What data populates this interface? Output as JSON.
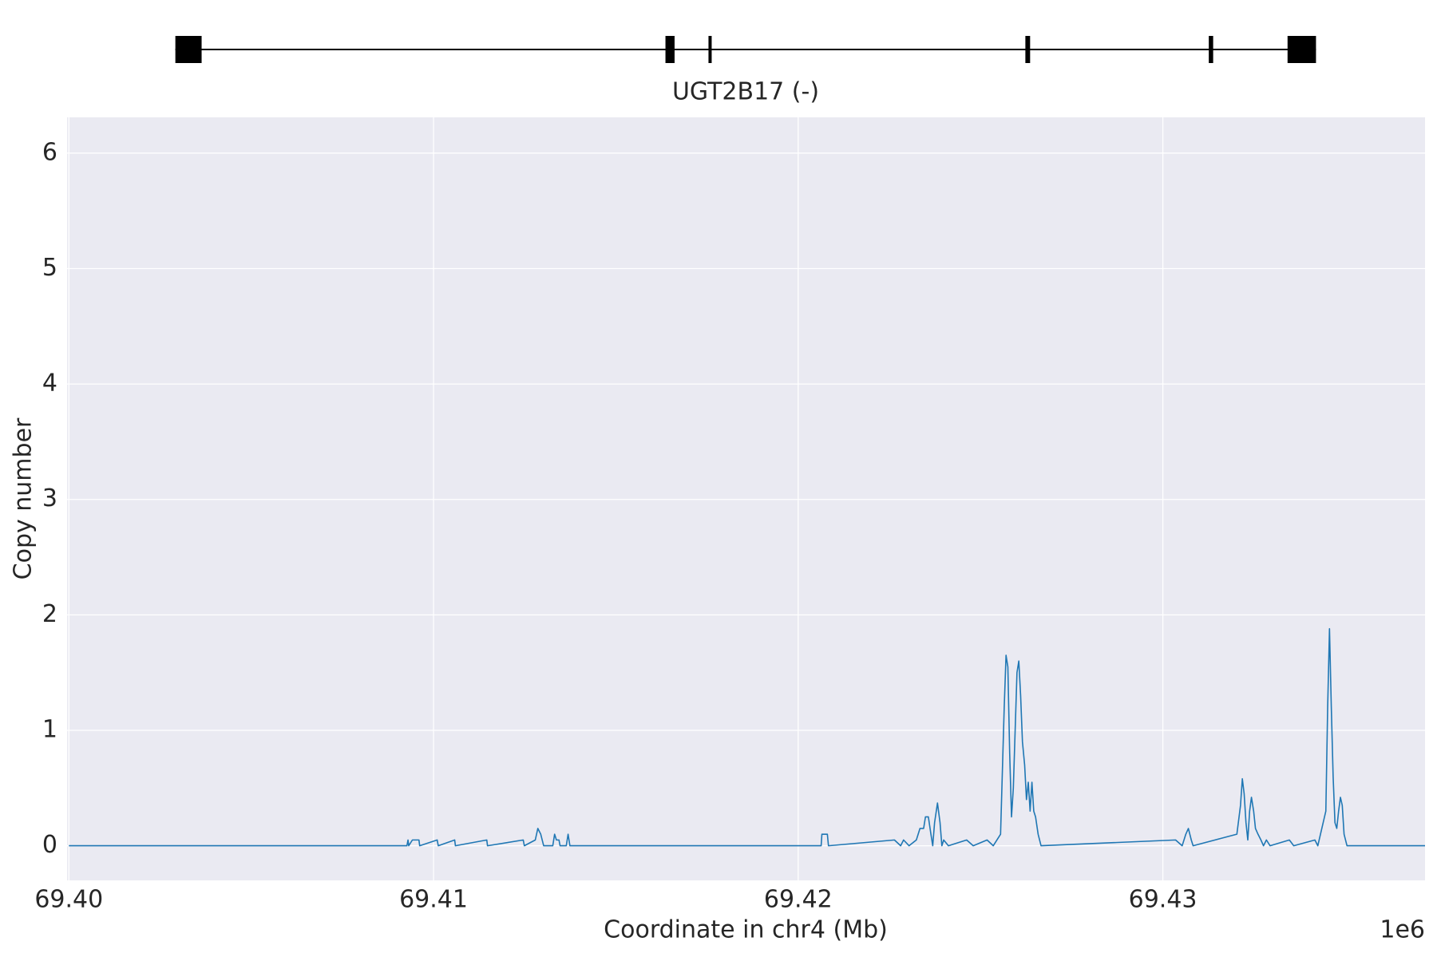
{
  "chart_data": {
    "type": "line",
    "gene_track": {
      "label": "UGT2B17 (-)",
      "start": 69.40292,
      "end": 69.4342,
      "exons": [
        [
          69.40292,
          69.40364
        ],
        [
          69.41636,
          69.41661
        ],
        [
          69.41754,
          69.41761
        ],
        [
          69.42623,
          69.42636
        ],
        [
          69.43126,
          69.43138
        ],
        [
          69.43342,
          69.4342
        ]
      ]
    },
    "xlabel": "Coordinate in chr4 (Mb)",
    "ylabel": "Copy number",
    "x_offset_label": "1e6",
    "xlim": [
      69.39995,
      69.43719
    ],
    "ylim": [
      -0.3,
      6.31
    ],
    "xticks": [
      {
        "value": 69.4,
        "label": "69.40"
      },
      69.41,
      69.42,
      69.43
    ],
    "yticks": [
      0,
      1,
      2,
      3,
      4,
      5,
      6
    ],
    "grid": true,
    "color": "#1f77b4",
    "x": [
      69.4,
      69.40927,
      69.4093,
      69.40932,
      69.40942,
      69.4096,
      69.40962,
      69.4101,
      69.41013,
      69.41058,
      69.4106,
      69.41146,
      69.41148,
      69.41246,
      69.41249,
      69.41279,
      69.41286,
      69.41294,
      69.41302,
      69.41327,
      69.41332,
      69.41337,
      69.41344,
      69.41347,
      69.41364,
      69.41369,
      69.41374,
      69.42063,
      69.42065,
      69.4208,
      69.42083,
      69.42264,
      69.42281,
      69.42289,
      69.42304,
      69.42324,
      69.42334,
      69.42344,
      69.42349,
      69.42357,
      69.42364,
      69.42369,
      69.42374,
      69.42382,
      69.42389,
      69.42394,
      69.42399,
      69.42412,
      69.42462,
      69.4248,
      69.42518,
      69.42535,
      69.42555,
      69.42565,
      69.4257,
      69.42575,
      69.4258,
      69.42585,
      69.4259,
      69.42595,
      69.426,
      69.42605,
      69.4261,
      69.42615,
      69.42621,
      69.42626,
      69.42631,
      69.42636,
      69.42641,
      69.42646,
      69.42651,
      69.42658,
      69.42666,
      69.43035,
      69.43053,
      69.43063,
      69.4307,
      69.43078,
      69.43083,
      69.43203,
      69.43213,
      69.43218,
      69.43223,
      69.43228,
      69.43233,
      69.43238,
      69.43243,
      69.43249,
      69.43254,
      69.43261,
      69.43269,
      69.43276,
      69.43284,
      69.43294,
      69.43347,
      69.43359,
      69.43417,
      69.43425,
      69.43447,
      69.43452,
      69.43457,
      69.43462,
      69.43467,
      69.43472,
      69.43477,
      69.43482,
      69.43487,
      69.43492,
      69.43497,
      69.43505,
      69.43719
    ],
    "values": [
      0,
      0,
      0.05,
      0,
      0.05,
      0.05,
      0,
      0.05,
      0,
      0.05,
      0,
      0.05,
      0,
      0.05,
      0,
      0.05,
      0.15,
      0.1,
      0,
      0,
      0.1,
      0.05,
      0.05,
      0,
      0,
      0.1,
      0,
      0,
      0.1,
      0.1,
      0,
      0.05,
      0,
      0.05,
      0,
      0.05,
      0.15,
      0.15,
      0.25,
      0.25,
      0.1,
      0,
      0.2,
      0.37,
      0.2,
      0,
      0.05,
      0,
      0.05,
      0,
      0.05,
      0,
      0.1,
      1.2,
      1.65,
      1.55,
      0.8,
      0.25,
      0.5,
      1.0,
      1.5,
      1.6,
      1.3,
      0.9,
      0.7,
      0.4,
      0.55,
      0.3,
      0.55,
      0.3,
      0.25,
      0.1,
      0,
      0.05,
      0,
      0.1,
      0.15,
      0.05,
      0,
      0.1,
      0.35,
      0.58,
      0.45,
      0.2,
      0.05,
      0.3,
      0.42,
      0.3,
      0.15,
      0.1,
      0.05,
      0,
      0.05,
      0,
      0.05,
      0,
      0.05,
      0,
      0.3,
      1.2,
      1.88,
      1.2,
      0.6,
      0.2,
      0.15,
      0.3,
      0.42,
      0.35,
      0.1,
      0,
      0
    ]
  }
}
